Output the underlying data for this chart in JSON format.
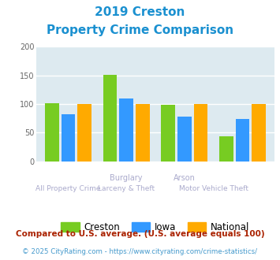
{
  "title_line1": "2019 Creston",
  "title_line2": "Property Crime Comparison",
  "creston": [
    101,
    151,
    98,
    43
  ],
  "iowa": [
    82,
    109,
    78,
    74
  ],
  "national": [
    100,
    100,
    100,
    100
  ],
  "color_creston": "#77cc22",
  "color_iowa": "#3399ff",
  "color_national": "#ffaa00",
  "ylim": [
    0,
    200
  ],
  "yticks": [
    0,
    50,
    100,
    150,
    200
  ],
  "legend_labels": [
    "Creston",
    "Iowa",
    "National"
  ],
  "top_labels": [
    "",
    "Burglary",
    "Arson",
    ""
  ],
  "bottom_labels": [
    "All Property Crime",
    "Larceny & Theft",
    "Motor Vehicle Theft",
    ""
  ],
  "footnote1": "Compared to U.S. average. (U.S. average equals 100)",
  "footnote2": "© 2025 CityRating.com - https://www.cityrating.com/crime-statistics/",
  "title_color": "#1a90d0",
  "label_color": "#aaaacc",
  "footnote1_color": "#aa2200",
  "footnote2_color": "#4499cc",
  "plot_bg": "#ddeaf0"
}
